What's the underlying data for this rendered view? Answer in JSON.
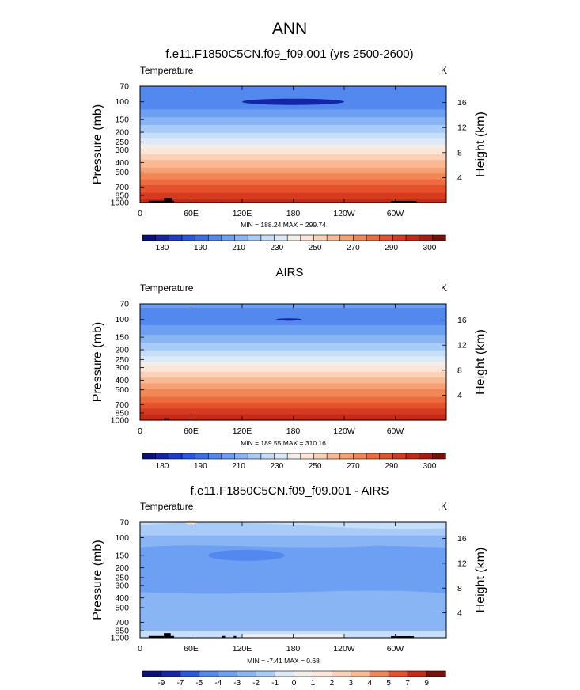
{
  "figure": {
    "title": "ANN"
  },
  "colors": {
    "warm": [
      "#fbe6d8",
      "#fbd1b7",
      "#f9b993",
      "#f5a173",
      "#f18657",
      "#ec6b3f",
      "#e5502d",
      "#d63a20",
      "#c42a17",
      "#a81c11",
      "#7a0f0a"
    ],
    "cool": [
      "#0a0f7a",
      "#1525a8",
      "#1f3dc8",
      "#2a57e0",
      "#3b6fe8",
      "#5388ee",
      "#6d9ff2",
      "#8ab5f5",
      "#a8cbf8",
      "#c6def9",
      "#dde9f7"
    ],
    "neutral": "#f4eeea",
    "land": "#000000"
  },
  "chart_data": [
    {
      "type": "heatmap",
      "title": "f.e11.F1850C5CN.f09_f09.001 (yrs 2500-2600)",
      "variable_label": "Temperature",
      "units": "K",
      "xlabel": "",
      "ylabel": "Pressure (mb)",
      "ylabel_right": "Height (km)",
      "x_ticks": [
        "0",
        "60E",
        "120E",
        "180",
        "120W",
        "60W"
      ],
      "x_tick_lon": [
        0,
        60,
        120,
        180,
        240,
        300
      ],
      "xlim": [
        0,
        360
      ],
      "y_ticks": [
        "70",
        "100",
        "150",
        "200",
        "250",
        "300",
        "400",
        "500",
        "700",
        "850",
        "1000"
      ],
      "y_tick_p": [
        70,
        100,
        150,
        200,
        250,
        300,
        400,
        500,
        700,
        850,
        1000
      ],
      "ylim": [
        1000,
        70
      ],
      "right_ticks": [
        "16",
        "12",
        "8",
        "4"
      ],
      "right_tick_km": [
        16,
        12,
        8,
        4
      ],
      "stats": "MIN = 188.24  MAX = 299.74",
      "colorbar_labels": [
        "180",
        "190",
        "210",
        "230",
        "250",
        "270",
        "290",
        "300"
      ],
      "colorbar_kind": "abs",
      "profile_p": [
        70,
        100,
        150,
        200,
        250,
        300,
        400,
        500,
        700,
        850,
        1000
      ],
      "profile_T": [
        205,
        200,
        212,
        222,
        232,
        242,
        255,
        264,
        278,
        285,
        292
      ]
    },
    {
      "type": "heatmap",
      "title": "AIRS",
      "variable_label": "Temperature",
      "units": "K",
      "xlabel": "",
      "ylabel": "Pressure (mb)",
      "ylabel_right": "Height (km)",
      "x_ticks": [
        "0",
        "60E",
        "120E",
        "180",
        "120W",
        "60W"
      ],
      "x_tick_lon": [
        0,
        60,
        120,
        180,
        240,
        300
      ],
      "xlim": [
        0,
        360
      ],
      "y_ticks": [
        "70",
        "100",
        "150",
        "200",
        "250",
        "300",
        "400",
        "500",
        "700",
        "850",
        "1000"
      ],
      "y_tick_p": [
        70,
        100,
        150,
        200,
        250,
        300,
        400,
        500,
        700,
        850,
        1000
      ],
      "ylim": [
        1000,
        70
      ],
      "right_ticks": [
        "16",
        "12",
        "8",
        "4"
      ],
      "right_tick_km": [
        16,
        12,
        8,
        4
      ],
      "stats": "MIN = 189.55  MAX = 310.16",
      "colorbar_labels": [
        "180",
        "190",
        "210",
        "230",
        "250",
        "270",
        "290",
        "300"
      ],
      "colorbar_kind": "abs",
      "profile_p": [
        70,
        100,
        150,
        200,
        250,
        300,
        400,
        500,
        700,
        850,
        1000
      ],
      "profile_T": [
        206,
        201,
        213,
        223,
        233,
        243,
        256,
        265,
        279,
        287,
        296
      ]
    },
    {
      "type": "heatmap",
      "title": "f.e11.F1850C5CN.f09_f09.001 - AIRS",
      "variable_label": "Temperature",
      "units": "K",
      "xlabel": "",
      "ylabel": "Pressure (mb)",
      "ylabel_right": "Height (km)",
      "x_ticks": [
        "0",
        "60E",
        "120E",
        "180",
        "120W",
        "60W"
      ],
      "x_tick_lon": [
        0,
        60,
        120,
        180,
        240,
        300
      ],
      "xlim": [
        0,
        360
      ],
      "y_ticks": [
        "70",
        "100",
        "150",
        "200",
        "250",
        "300",
        "400",
        "500",
        "700",
        "850",
        "1000"
      ],
      "y_tick_p": [
        70,
        100,
        150,
        200,
        250,
        300,
        400,
        500,
        700,
        850,
        1000
      ],
      "ylim": [
        1000,
        70
      ],
      "right_ticks": [
        "16",
        "12",
        "8",
        "4"
      ],
      "right_tick_km": [
        16,
        12,
        8,
        4
      ],
      "stats": "MIN = -7.41  MAX =  0.68",
      "colorbar_labels": [
        "-9",
        "-7",
        "-5",
        "-4",
        "-3",
        "-2",
        "-1",
        "0",
        "1",
        "2",
        "3",
        "4",
        "5",
        "7",
        "9"
      ],
      "colorbar_kind": "diff"
    }
  ]
}
